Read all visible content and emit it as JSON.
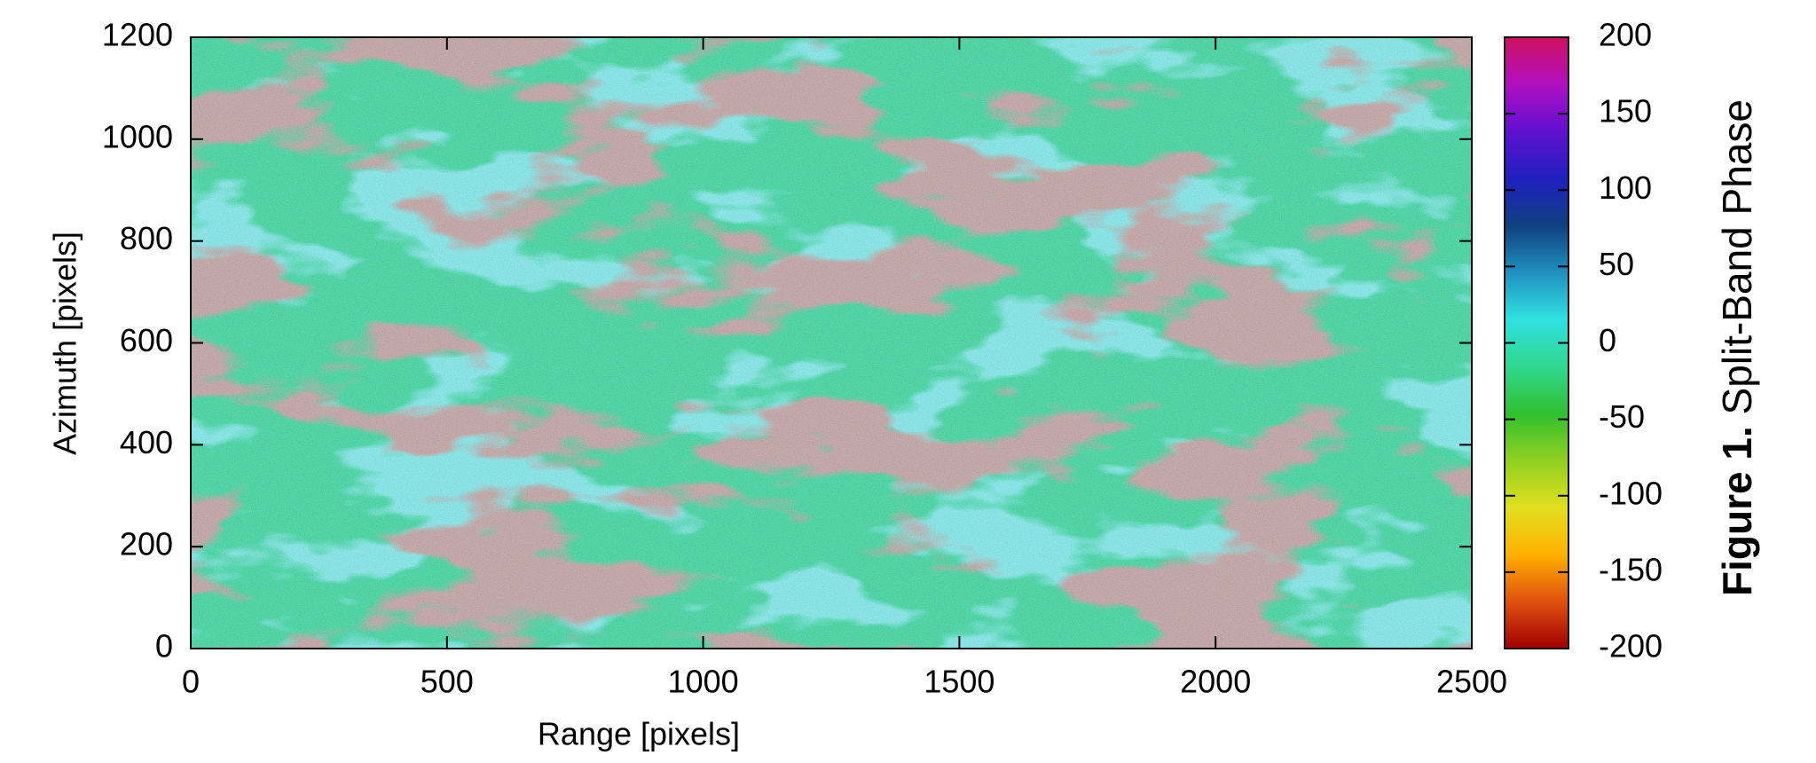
{
  "chart_data": {
    "type": "heatmap",
    "xlabel": "Range [pixels]",
    "ylabel": "Azimuth [pixels]",
    "xlim": [
      0,
      2500
    ],
    "xticks": [
      0,
      500,
      1000,
      1500,
      2000,
      2500
    ],
    "ylim": [
      0,
      1200
    ],
    "yticks": [
      0,
      200,
      400,
      600,
      800,
      1000,
      1200
    ],
    "colorbar": {
      "label": "Split-Band Phase",
      "lim": [
        -200,
        200
      ],
      "ticks": [
        -200,
        -150,
        -100,
        -50,
        0,
        50,
        100,
        150,
        200
      ],
      "colors": [
        "#a00000",
        "#e05010",
        "#ffb000",
        "#e0e020",
        "#90d020",
        "#30c030",
        "#30d890",
        "#30e0e0",
        "#2090c0",
        "#104080",
        "#2020c0",
        "#6010d0",
        "#b010c0",
        "#d01060"
      ]
    },
    "figure_label": "Figure 1."
  }
}
